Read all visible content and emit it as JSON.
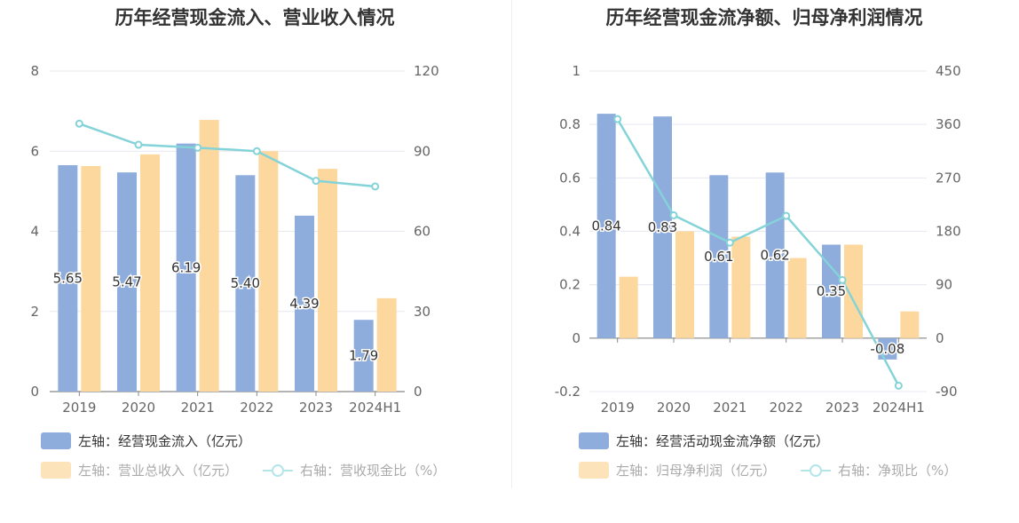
{
  "colors": {
    "bar_primary": "#8eacdc",
    "bar_secondary": "#fdd89e",
    "line": "#84d3d9",
    "legend_secondary": "#fde3b9",
    "legend_line": "#b3e5e9",
    "grid": "#e6e8f0",
    "axis": "#888888",
    "tick_text": "#666666"
  },
  "chart_data": [
    {
      "type": "bar",
      "title": "历年经营现金流入、营业收入情况",
      "categories": [
        "2019",
        "2020",
        "2021",
        "2022",
        "2023",
        "2024H1"
      ],
      "left_axis": {
        "ticks": [
          "0",
          "2",
          "4",
          "6",
          "8"
        ],
        "min": 0,
        "max": 8
      },
      "right_axis": {
        "ticks": [
          "0",
          "30",
          "60",
          "90",
          "120"
        ],
        "min": 0,
        "max": 120
      },
      "series": [
        {
          "name": "左轴：经营现金流入（亿元）",
          "axis": "left",
          "type": "bar",
          "values": [
            5.65,
            5.47,
            6.19,
            5.4,
            4.39,
            1.79
          ],
          "labels": [
            "5.65",
            "5.47",
            "6.19",
            "5.40",
            "4.39",
            "1.79"
          ]
        },
        {
          "name": "左轴：营业总收入（亿元）",
          "axis": "left",
          "type": "bar",
          "values": [
            5.63,
            5.92,
            6.78,
            6.0,
            5.56,
            2.33
          ]
        },
        {
          "name": "右轴：营收现金比（%）",
          "axis": "right",
          "type": "line",
          "values": [
            100.3,
            92.4,
            91.3,
            90.0,
            78.9,
            76.8
          ]
        }
      ]
    },
    {
      "type": "bar",
      "title": "历年经营现金流净额、归母净利润情况",
      "categories": [
        "2019",
        "2020",
        "2021",
        "2022",
        "2023",
        "2024H1"
      ],
      "left_axis": {
        "ticks": [
          "-0.2",
          "0",
          "0.2",
          "0.4",
          "0.6",
          "0.8",
          "1"
        ],
        "min": -0.2,
        "max": 1
      },
      "right_axis": {
        "ticks": [
          "-90",
          "0",
          "90",
          "180",
          "270",
          "360",
          "450"
        ],
        "min": -90,
        "max": 450
      },
      "series": [
        {
          "name": "左轴：经营活动现金流净额（亿元）",
          "axis": "left",
          "type": "bar",
          "values": [
            0.84,
            0.83,
            0.61,
            0.62,
            0.35,
            -0.08
          ],
          "labels": [
            "0.84",
            "0.83",
            "0.61",
            "0.62",
            "0.35",
            "-0.08"
          ]
        },
        {
          "name": "左轴：归母净利润（亿元）",
          "axis": "left",
          "type": "bar",
          "values": [
            0.23,
            0.4,
            0.38,
            0.3,
            0.35,
            0.1
          ]
        },
        {
          "name": "右轴：净现比（%）",
          "axis": "right",
          "type": "line",
          "values": [
            369,
            207,
            161,
            206,
            98,
            -80
          ]
        }
      ]
    }
  ]
}
